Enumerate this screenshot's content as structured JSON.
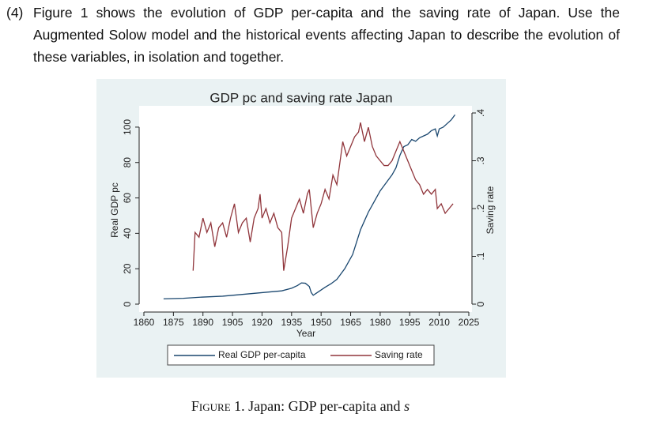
{
  "question": {
    "number": "(4)",
    "text": "Figure 1 shows the evolution of GDP per-capita and the saving rate of Japan. Use the Augmented Solow model and the historical events affecting Japan to describe the evolution of these variables, in isolation and together."
  },
  "chart_data": {
    "type": "line",
    "title": "GDP pc and saving rate Japan",
    "x_label": "Year",
    "y_label": "Real GDP pc",
    "y2_label": "Saving rate",
    "xlim": [
      1860,
      2025
    ],
    "xticks": [
      1860,
      1875,
      1890,
      1905,
      1920,
      1935,
      1950,
      1965,
      1980,
      1995,
      2010,
      2025
    ],
    "ylim": [
      0,
      108
    ],
    "yticks": [
      0,
      20,
      40,
      60,
      80,
      100
    ],
    "y2lim": [
      0,
      0.4
    ],
    "y2ticks": [
      0,
      {
        "value": 0.1,
        "label": ".1"
      },
      {
        "value": 0.2,
        "label": ".2"
      },
      {
        "value": 0.3,
        "label": ".3"
      },
      {
        "value": 0.4,
        "label": ".4"
      }
    ],
    "legend": "bottom",
    "series": [
      {
        "name": "Real GDP per-capita",
        "color": "#1a476f",
        "x": [
          1870,
          1880,
          1890,
          1900,
          1910,
          1915,
          1920,
          1925,
          1930,
          1935,
          1938,
          1940,
          1942,
          1944,
          1945,
          1946,
          1948,
          1950,
          1952,
          1955,
          1958,
          1960,
          1962,
          1964,
          1966,
          1968,
          1970,
          1972,
          1974,
          1976,
          1978,
          1980,
          1982,
          1984,
          1986,
          1988,
          1990,
          1992,
          1994,
          1996,
          1998,
          2000,
          2002,
          2004,
          2006,
          2008,
          2009,
          2010,
          2012,
          2014,
          2016,
          2018
        ],
        "values": [
          3,
          3.3,
          4,
          4.5,
          5.5,
          6,
          6.5,
          7,
          7.5,
          9,
          10.5,
          12,
          11.8,
          10,
          6.5,
          5,
          6.5,
          8,
          9.5,
          11.5,
          14,
          17,
          20,
          24,
          28,
          35,
          42,
          47,
          52,
          56,
          60,
          64,
          67,
          70,
          73,
          77,
          84,
          89,
          90,
          93,
          92,
          94,
          95,
          96,
          98,
          99,
          95,
          99,
          100,
          102,
          104,
          107
        ]
      },
      {
        "name": "Saving rate",
        "color": "#90353b",
        "axis": "y2",
        "x": [
          1885,
          1886,
          1888,
          1890,
          1892,
          1894,
          1896,
          1898,
          1900,
          1902,
          1904,
          1906,
          1908,
          1910,
          1912,
          1914,
          1916,
          1918,
          1919,
          1920,
          1922,
          1924,
          1926,
          1928,
          1930,
          1931,
          1933,
          1935,
          1937,
          1939,
          1941,
          1943,
          1944,
          1946,
          1948,
          1950,
          1952,
          1954,
          1956,
          1958,
          1960,
          1961,
          1963,
          1965,
          1967,
          1969,
          1970,
          1972,
          1974,
          1976,
          1978,
          1980,
          1982,
          1984,
          1986,
          1988,
          1990,
          1992,
          1994,
          1996,
          1998,
          2000,
          2002,
          2004,
          2006,
          2008,
          2009,
          2011,
          2013,
          2015,
          2017
        ],
        "values": [
          0.07,
          0.15,
          0.14,
          0.18,
          0.15,
          0.17,
          0.12,
          0.16,
          0.17,
          0.14,
          0.18,
          0.21,
          0.15,
          0.17,
          0.18,
          0.13,
          0.18,
          0.2,
          0.23,
          0.18,
          0.2,
          0.17,
          0.19,
          0.16,
          0.15,
          0.07,
          0.12,
          0.18,
          0.2,
          0.22,
          0.19,
          0.23,
          0.24,
          0.16,
          0.19,
          0.21,
          0.24,
          0.22,
          0.27,
          0.25,
          0.31,
          0.34,
          0.31,
          0.33,
          0.35,
          0.36,
          0.38,
          0.34,
          0.37,
          0.33,
          0.31,
          0.3,
          0.29,
          0.29,
          0.3,
          0.32,
          0.34,
          0.32,
          0.3,
          0.28,
          0.26,
          0.25,
          0.23,
          0.24,
          0.23,
          0.24,
          0.2,
          0.21,
          0.19,
          0.2,
          0.21
        ]
      }
    ]
  },
  "caption": {
    "label": "Figure 1.",
    "text": "Japan: GDP per-capita and",
    "symbol": "s"
  }
}
